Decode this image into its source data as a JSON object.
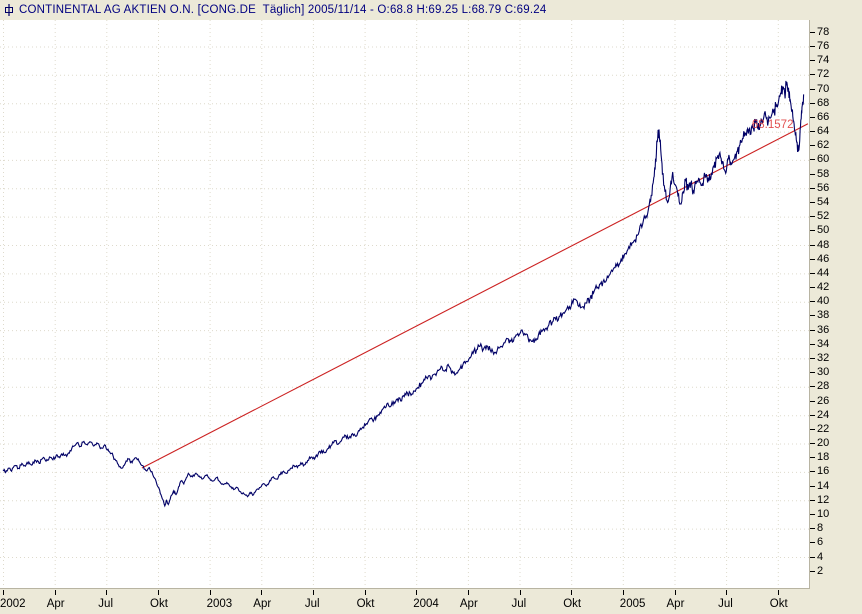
{
  "window": {
    "title": "CONTINENTAL AG AKTIEN O.N. [CONG.DE  Täglich] 2005/11/14 - O:68.8 H:69.25 L:68.79 C:69.24",
    "icon": "chart-window-icon"
  },
  "colors": {
    "background": "#ece9d8",
    "plot_background": "#ffffff",
    "title_text": "#000080",
    "price_line": "#000066",
    "trendline": "#cc2222",
    "trendline_label": "#dd3333",
    "grid": "#dedacc",
    "axis_text": "#000000"
  },
  "chart_data": {
    "type": "line",
    "instrument": "CONTINENTAL AG AKTIEN O.N.",
    "symbol": "CONG.DE",
    "period": "Täglich",
    "date": "2005/11/14",
    "ohlc": {
      "open": 68.8,
      "high": 69.25,
      "low": 68.79,
      "close": 69.24
    },
    "x_axis_note": "months since Jan 2002, ticks every 3 months",
    "x_ticks": [
      "2002",
      "Apr",
      "Jul",
      "Okt",
      "2003",
      "Apr",
      "Jul",
      "Okt",
      "2004",
      "Apr",
      "Jul",
      "Okt",
      "2005",
      "Apr",
      "Jul",
      "Okt"
    ],
    "y_ticks": [
      78,
      76,
      74,
      72,
      70,
      68,
      66,
      64,
      62,
      60,
      58,
      56,
      54,
      52,
      50,
      48,
      46,
      44,
      42,
      40,
      38,
      36,
      34,
      32,
      30,
      28,
      26,
      24,
      22,
      20,
      18,
      16,
      14,
      12,
      10,
      8,
      6,
      4,
      2
    ],
    "y_range": [
      0,
      80
    ],
    "grid": "dotted, horizontal every 4 units, vertical every 3 months",
    "legend": "none",
    "trendline": {
      "from": [
        8.07,
        16.55
      ],
      "to": [
        46.75,
        65.1
      ],
      "label": "68.1572"
    },
    "noise_amplitude_pct": 1.4,
    "series": [
      {
        "name": "CONG.DE close",
        "points": [
          [
            0,
            16.3
          ],
          [
            0.15,
            15.9
          ],
          [
            0.3,
            16.5
          ],
          [
            0.5,
            16.1
          ],
          [
            0.7,
            16.9
          ],
          [
            0.9,
            16.5
          ],
          [
            1.1,
            17.2
          ],
          [
            1.3,
            16.8
          ],
          [
            1.5,
            17.4
          ],
          [
            1.7,
            17.0
          ],
          [
            1.9,
            17.6
          ],
          [
            2.1,
            17.2
          ],
          [
            2.3,
            17.9
          ],
          [
            2.5,
            17.5
          ],
          [
            2.7,
            18.1
          ],
          [
            2.9,
            17.7
          ],
          [
            3.1,
            18.4
          ],
          [
            3.3,
            18.0
          ],
          [
            3.5,
            18.6
          ],
          [
            3.7,
            18.2
          ],
          [
            3.9,
            19.0
          ],
          [
            4.1,
            19.6
          ],
          [
            4.3,
            20.1
          ],
          [
            4.5,
            19.6
          ],
          [
            4.7,
            20.3
          ],
          [
            4.9,
            19.8
          ],
          [
            5.1,
            20.2
          ],
          [
            5.3,
            19.7
          ],
          [
            5.5,
            20.0
          ],
          [
            5.7,
            19.4
          ],
          [
            5.9,
            19.8
          ],
          [
            6.1,
            19.2
          ],
          [
            6.3,
            18.6
          ],
          [
            6.5,
            17.8
          ],
          [
            6.7,
            17.0
          ],
          [
            6.9,
            16.5
          ],
          [
            7.1,
            17.2
          ],
          [
            7.3,
            17.8
          ],
          [
            7.5,
            17.3
          ],
          [
            7.7,
            18.0
          ],
          [
            7.9,
            17.5
          ],
          [
            8.1,
            16.9
          ],
          [
            8.3,
            16.2
          ],
          [
            8.5,
            16.6
          ],
          [
            8.7,
            15.6
          ],
          [
            8.9,
            14.6
          ],
          [
            9.1,
            13.4
          ],
          [
            9.25,
            12.2
          ],
          [
            9.4,
            11.2
          ],
          [
            9.5,
            12.0
          ],
          [
            9.6,
            11.4
          ],
          [
            9.75,
            12.6
          ],
          [
            9.9,
            13.3
          ],
          [
            10.05,
            12.8
          ],
          [
            10.2,
            13.9
          ],
          [
            10.35,
            14.7
          ],
          [
            10.5,
            14.3
          ],
          [
            10.65,
            15.2
          ],
          [
            10.8,
            15.7
          ],
          [
            11.0,
            15.3
          ],
          [
            11.2,
            15.8
          ],
          [
            11.4,
            15.4
          ],
          [
            11.6,
            15.0
          ],
          [
            11.8,
            15.5
          ],
          [
            12.0,
            15.1
          ],
          [
            12.2,
            14.7
          ],
          [
            12.4,
            15.2
          ],
          [
            12.6,
            14.6
          ],
          [
            12.8,
            14.2
          ],
          [
            13.0,
            14.5
          ],
          [
            13.2,
            13.9
          ],
          [
            13.4,
            13.5
          ],
          [
            13.6,
            13.8
          ],
          [
            13.8,
            13.2
          ],
          [
            14.0,
            12.9
          ],
          [
            14.2,
            12.5
          ],
          [
            14.35,
            13.1
          ],
          [
            14.5,
            12.7
          ],
          [
            14.7,
            13.4
          ],
          [
            14.9,
            13.8
          ],
          [
            15.1,
            14.3
          ],
          [
            15.3,
            14.0
          ],
          [
            15.5,
            14.8
          ],
          [
            15.7,
            15.3
          ],
          [
            15.9,
            15.0
          ],
          [
            16.1,
            15.6
          ],
          [
            16.3,
            16.1
          ],
          [
            16.5,
            15.8
          ],
          [
            16.7,
            16.5
          ],
          [
            16.9,
            16.9
          ],
          [
            17.1,
            16.6
          ],
          [
            17.3,
            17.3
          ],
          [
            17.5,
            17.0
          ],
          [
            17.7,
            17.6
          ],
          [
            17.9,
            18.1
          ],
          [
            18.1,
            17.8
          ],
          [
            18.3,
            18.5
          ],
          [
            18.5,
            19.0
          ],
          [
            18.7,
            18.7
          ],
          [
            18.9,
            19.3
          ],
          [
            19.1,
            19.8
          ],
          [
            19.3,
            20.4
          ],
          [
            19.5,
            20.0
          ],
          [
            19.7,
            20.7
          ],
          [
            19.9,
            21.1
          ],
          [
            20.1,
            20.8
          ],
          [
            20.3,
            21.4
          ],
          [
            20.5,
            21.0
          ],
          [
            20.7,
            21.8
          ],
          [
            20.9,
            22.3
          ],
          [
            21.1,
            22.8
          ],
          [
            21.3,
            23.5
          ],
          [
            21.5,
            23.1
          ],
          [
            21.7,
            23.9
          ],
          [
            21.9,
            24.4
          ],
          [
            22.1,
            25.0
          ],
          [
            22.3,
            25.6
          ],
          [
            22.5,
            25.2
          ],
          [
            22.7,
            25.9
          ],
          [
            22.9,
            26.3
          ],
          [
            23.1,
            26.0
          ],
          [
            23.3,
            26.6
          ],
          [
            23.5,
            27.1
          ],
          [
            23.7,
            26.8
          ],
          [
            23.9,
            27.4
          ],
          [
            24.1,
            27.9
          ],
          [
            24.3,
            28.5
          ],
          [
            24.5,
            29.0
          ],
          [
            24.7,
            29.5
          ],
          [
            24.9,
            29.2
          ],
          [
            25.1,
            29.8
          ],
          [
            25.3,
            30.3
          ],
          [
            25.5,
            30.8
          ],
          [
            25.7,
            30.4
          ],
          [
            25.9,
            30.9
          ],
          [
            26.1,
            30.2
          ],
          [
            26.3,
            29.8
          ],
          [
            26.5,
            30.4
          ],
          [
            26.7,
            31.0
          ],
          [
            26.9,
            31.6
          ],
          [
            27.1,
            32.1
          ],
          [
            27.3,
            32.7
          ],
          [
            27.5,
            33.2
          ],
          [
            27.7,
            33.7
          ],
          [
            27.9,
            33.3
          ],
          [
            28.1,
            33.8
          ],
          [
            28.3,
            33.2
          ],
          [
            28.5,
            32.6
          ],
          [
            28.7,
            33.1
          ],
          [
            28.9,
            33.7
          ],
          [
            29.1,
            34.2
          ],
          [
            29.3,
            34.8
          ],
          [
            29.5,
            34.4
          ],
          [
            29.7,
            35.0
          ],
          [
            29.9,
            35.5
          ],
          [
            30.1,
            36.0
          ],
          [
            30.3,
            35.5
          ],
          [
            30.5,
            34.9
          ],
          [
            30.7,
            34.4
          ],
          [
            30.9,
            34.8
          ],
          [
            31.1,
            35.3
          ],
          [
            31.3,
            35.8
          ],
          [
            31.5,
            36.2
          ],
          [
            31.7,
            36.7
          ],
          [
            31.9,
            37.1
          ],
          [
            32.1,
            37.5
          ],
          [
            32.3,
            37.9
          ],
          [
            32.5,
            38.3
          ],
          [
            32.7,
            38.8
          ],
          [
            32.9,
            39.3
          ],
          [
            33.1,
            39.8
          ],
          [
            33.3,
            40.2
          ],
          [
            33.5,
            39.7
          ],
          [
            33.7,
            39.3
          ],
          [
            33.9,
            39.8
          ],
          [
            34.1,
            40.5
          ],
          [
            34.3,
            41.2
          ],
          [
            34.5,
            41.9
          ],
          [
            34.7,
            42.5
          ],
          [
            34.9,
            43.1
          ],
          [
            35.1,
            43.6
          ],
          [
            35.3,
            44.2
          ],
          [
            35.5,
            44.8
          ],
          [
            35.7,
            45.4
          ],
          [
            35.9,
            46.0
          ],
          [
            36.1,
            46.7
          ],
          [
            36.3,
            47.4
          ],
          [
            36.5,
            48.0
          ],
          [
            36.7,
            48.7
          ],
          [
            36.9,
            49.5
          ],
          [
            37.1,
            50.5
          ],
          [
            37.3,
            51.8
          ],
          [
            37.5,
            53.2
          ],
          [
            37.65,
            55.0
          ],
          [
            37.8,
            57.5
          ],
          [
            37.9,
            60.0
          ],
          [
            38.0,
            62.5
          ],
          [
            38.1,
            64.3
          ],
          [
            38.2,
            61.5
          ],
          [
            38.3,
            58.0
          ],
          [
            38.45,
            55.5
          ],
          [
            38.6,
            54.0
          ],
          [
            38.75,
            56.0
          ],
          [
            38.9,
            58.3
          ],
          [
            39.05,
            56.5
          ],
          [
            39.2,
            55.0
          ],
          [
            39.35,
            53.8
          ],
          [
            39.5,
            55.5
          ],
          [
            39.65,
            57.0
          ],
          [
            39.8,
            55.8
          ],
          [
            39.95,
            56.8
          ],
          [
            40.1,
            55.6
          ],
          [
            40.25,
            56.6
          ],
          [
            40.4,
            57.4
          ],
          [
            40.55,
            56.4
          ],
          [
            40.7,
            57.3
          ],
          [
            40.85,
            58.0
          ],
          [
            41.0,
            57.0
          ],
          [
            41.15,
            58.2
          ],
          [
            41.3,
            59.0
          ],
          [
            41.45,
            60.2
          ],
          [
            41.6,
            60.8
          ],
          [
            41.75,
            59.4
          ],
          [
            41.9,
            58.6
          ],
          [
            42.05,
            59.3
          ],
          [
            42.2,
            60.1
          ],
          [
            42.35,
            59.5
          ],
          [
            42.5,
            60.4
          ],
          [
            42.65,
            61.2
          ],
          [
            42.8,
            62.1
          ],
          [
            42.95,
            63.0
          ],
          [
            43.1,
            63.8
          ],
          [
            43.25,
            64.4
          ],
          [
            43.4,
            63.6
          ],
          [
            43.55,
            64.5
          ],
          [
            43.7,
            65.2
          ],
          [
            43.85,
            64.4
          ],
          [
            44.0,
            64.9
          ],
          [
            44.15,
            65.6
          ],
          [
            44.3,
            66.2
          ],
          [
            44.45,
            65.4
          ],
          [
            44.6,
            66.0
          ],
          [
            44.75,
            66.8
          ],
          [
            44.9,
            67.5
          ],
          [
            45.05,
            68.3
          ],
          [
            45.2,
            69.4
          ],
          [
            45.3,
            70.3
          ],
          [
            45.4,
            69.3
          ],
          [
            45.5,
            70.5
          ],
          [
            45.6,
            69.6
          ],
          [
            45.7,
            68.4
          ],
          [
            45.8,
            67.0
          ],
          [
            45.9,
            65.5
          ],
          [
            46.0,
            64.0
          ],
          [
            46.1,
            62.5
          ],
          [
            46.2,
            61.3
          ],
          [
            46.3,
            64.2
          ],
          [
            46.38,
            66.8
          ],
          [
            46.44,
            68.2
          ],
          [
            46.5,
            69.24
          ]
        ]
      }
    ]
  }
}
